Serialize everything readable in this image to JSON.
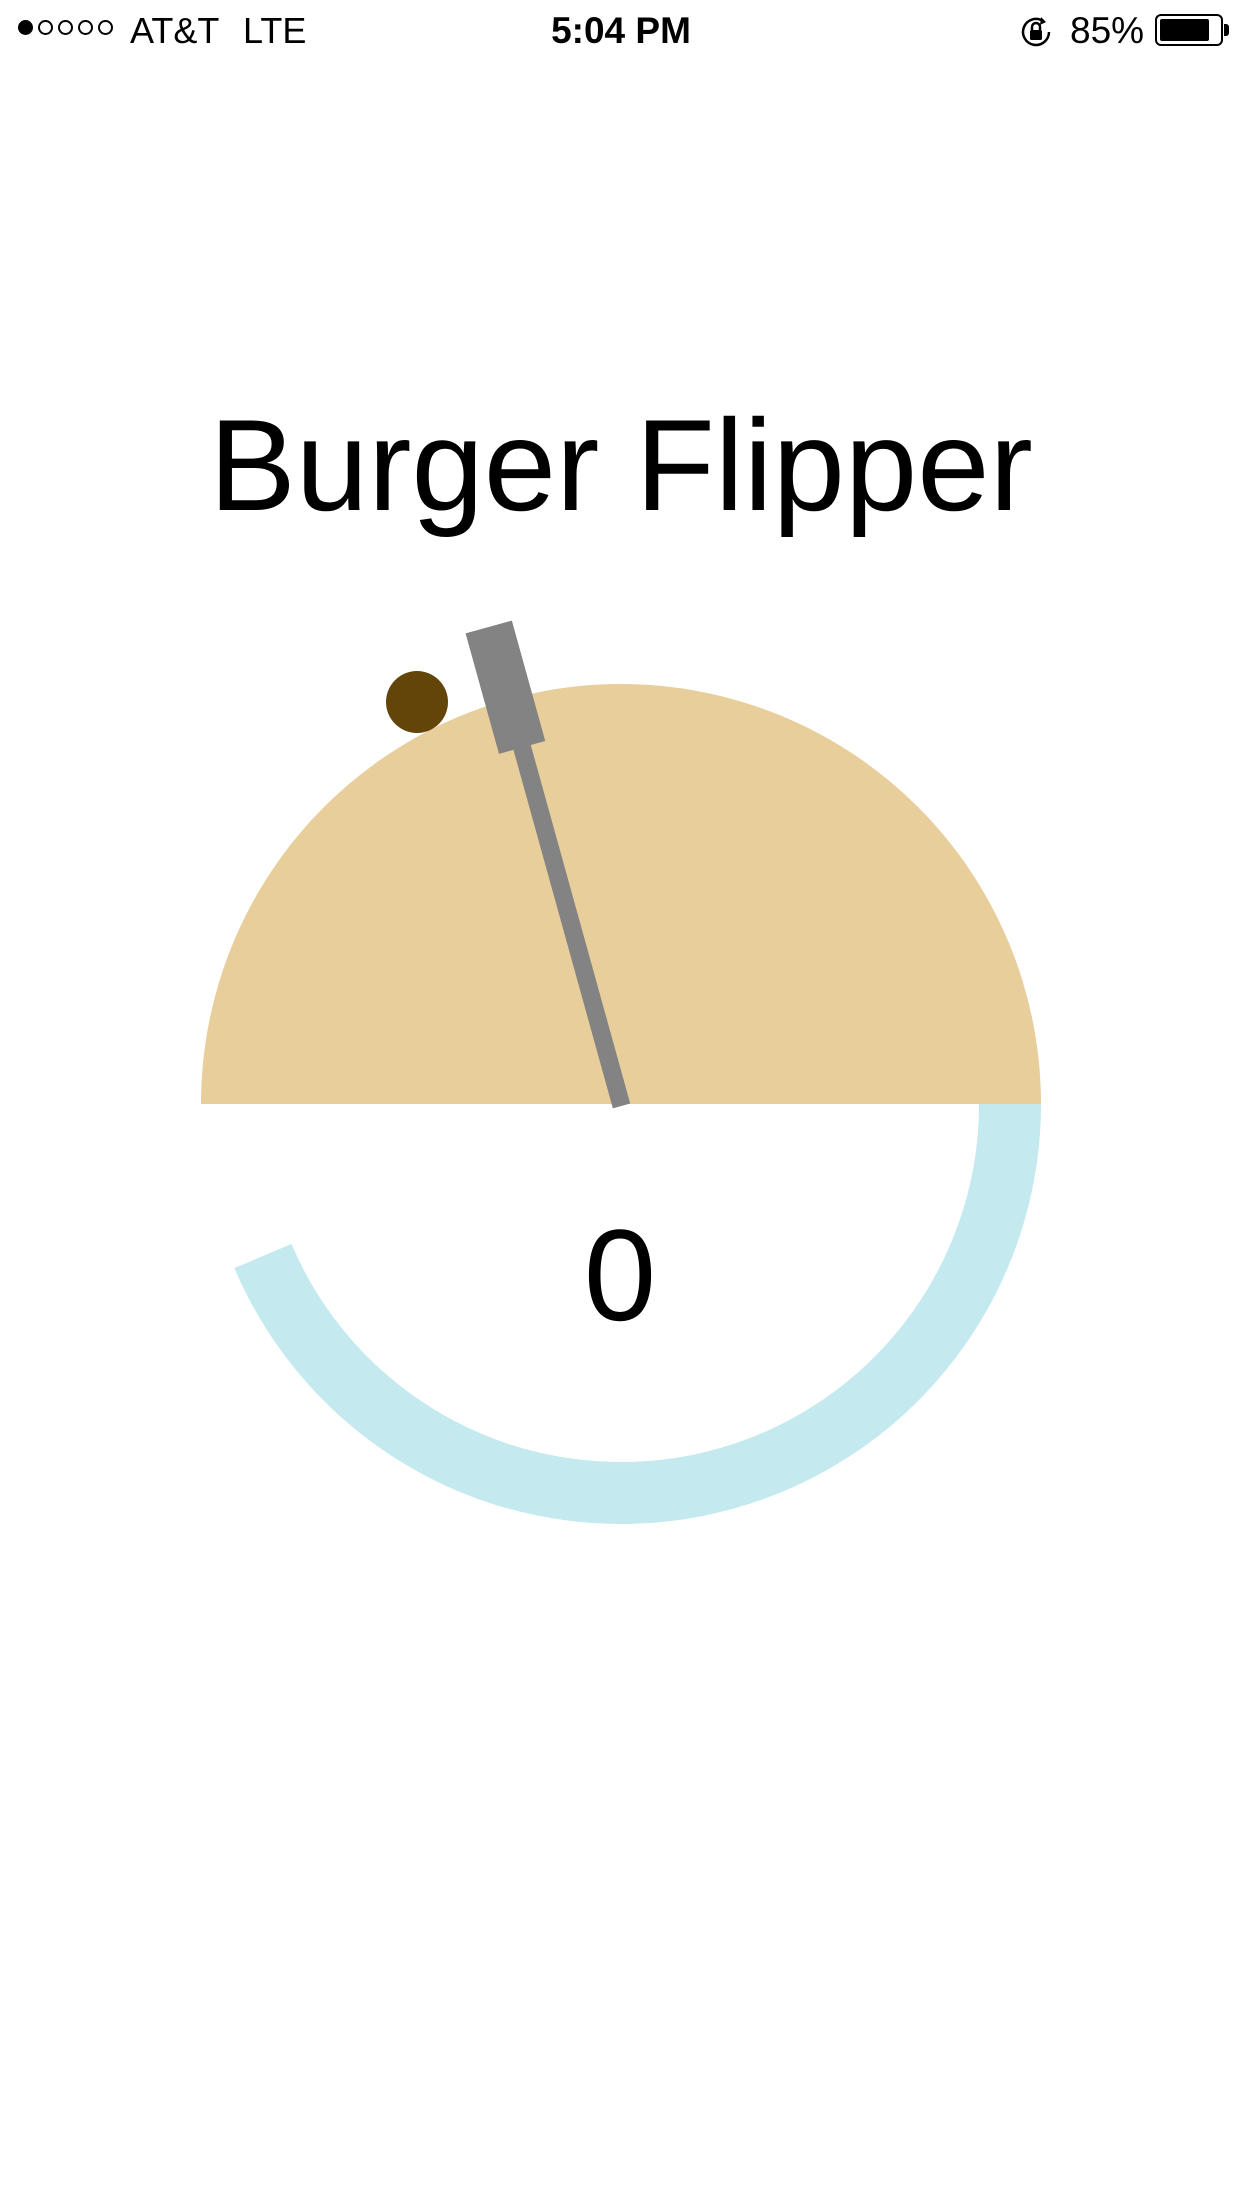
{
  "status_bar": {
    "signal_strength": 1,
    "signal_max": 5,
    "carrier": "AT&T",
    "network": "LTE",
    "time": "5:04 PM",
    "battery_percent_label": "85%",
    "battery_level": 0.85
  },
  "game": {
    "title": "Burger Flipper",
    "score": "0",
    "timer_progress": 0.65
  },
  "colors": {
    "grill": "#E8CE9B",
    "timer_ring": "#C4EAF0",
    "spatula": "#838383",
    "burger": "#634409",
    "text": "#000000"
  },
  "icons": {
    "rotation_lock": "rotation-lock-icon"
  }
}
